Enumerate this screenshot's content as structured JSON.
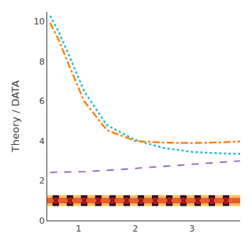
{
  "chart_data": {
    "type": "line",
    "ylabel": "Theory / DATA",
    "xlim": [
      0.45,
      3.85
    ],
    "ylim": [
      0,
      10.5
    ],
    "xticks": [
      1,
      2,
      3
    ],
    "yticks": [
      0,
      2,
      4,
      6,
      8,
      10
    ],
    "grid": false,
    "background": "#ffffff",
    "bands": [
      {
        "lo": 0.72,
        "hi": 1.28,
        "color": "#ff9900"
      },
      {
        "lo": 0.86,
        "hi": 1.14,
        "color": "#cc1111"
      }
    ],
    "series": [
      {
        "type": "line",
        "color": "#17becf",
        "line_style": "dotted",
        "x": [
          0.5,
          0.65,
          0.85,
          1.1,
          1.5,
          2.0,
          2.5,
          3.0,
          3.5,
          3.85
        ],
        "values": [
          10.3,
          9.5,
          8.2,
          6.5,
          4.8,
          4.05,
          3.65,
          3.45,
          3.38,
          3.35
        ]
      },
      {
        "type": "line",
        "color": "#ff7f0e",
        "line_style": "dashdot",
        "x": [
          0.5,
          0.65,
          0.85,
          1.1,
          1.5,
          2.0,
          2.5,
          3.0,
          3.5,
          3.85
        ],
        "values": [
          9.95,
          9.1,
          7.7,
          6.0,
          4.55,
          4.0,
          3.92,
          3.9,
          3.93,
          3.98
        ]
      },
      {
        "type": "line",
        "color": "#9467bd",
        "line_style": "dashed",
        "x": [
          0.5,
          0.65,
          0.85,
          1.1,
          1.5,
          2.0,
          2.5,
          3.0,
          3.5,
          3.85
        ],
        "values": [
          2.42,
          2.43,
          2.44,
          2.46,
          2.52,
          2.62,
          2.73,
          2.83,
          2.93,
          3.0
        ]
      },
      {
        "type": "errorbar",
        "color": "#1a0a2e",
        "x": [
          0.6,
          0.85,
          1.1,
          1.35,
          1.6,
          1.85,
          2.1,
          2.35,
          2.6,
          2.85,
          3.1,
          3.35,
          3.6
        ],
        "values": [
          1.0,
          1.0,
          1.0,
          1.0,
          1.0,
          1.0,
          1.0,
          1.0,
          1.0,
          1.0,
          1.0,
          1.0,
          1.0
        ],
        "error": 0.18
      },
      {
        "type": "errorbar",
        "color": "#cc1111",
        "x": [
          0.6,
          0.85,
          1.1,
          1.35,
          1.6,
          1.85,
          2.1,
          2.35,
          2.6,
          2.85,
          3.1,
          3.35,
          3.6
        ],
        "values": [
          1.0,
          1.0,
          1.0,
          1.0,
          1.0,
          1.0,
          1.0,
          1.0,
          1.0,
          1.0,
          1.0,
          1.0,
          1.0
        ],
        "error": 0.108
      }
    ]
  }
}
